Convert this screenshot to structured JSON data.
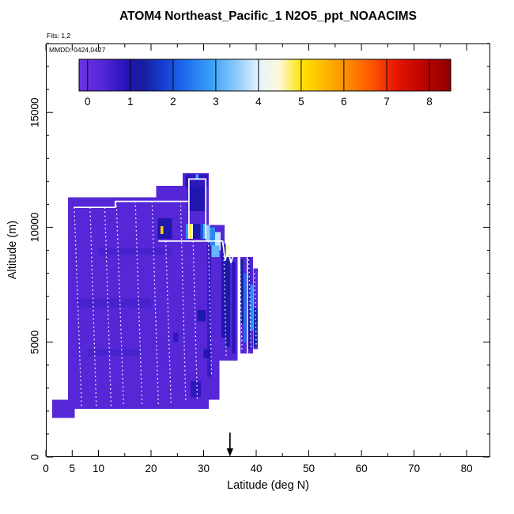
{
  "chart": {
    "title": "ATOM4 Northeast_Pacific_1 N2O5_ppt_NOAACIMS",
    "fits_label": "Fits: 1,2",
    "mmdd_label": "MMDD: 0424,0427"
  },
  "chart_data": {
    "type": "heatmap",
    "title": "ATOM4 Northeast_Pacific_1 N2O5_ppt_NOAACIMS",
    "annotations": [
      "Fits: 1,2",
      "MMDD: 0424,0427"
    ],
    "xlabel": "Latitude (deg N)",
    "ylabel": "Altitude (m)",
    "xlim": [
      0,
      84.5
    ],
    "ylim": [
      0,
      18000
    ],
    "x_ticks_labeled": [
      0,
      5,
      10,
      20,
      30,
      40,
      50,
      60,
      70,
      80
    ],
    "x_ticks_minor_step": 5,
    "y_ticks_labeled": [
      0,
      5000,
      10000,
      15000
    ],
    "y_ticks_minor_step": 1000,
    "arrow_x": 35,
    "colorbar": {
      "ticks": [
        0,
        1,
        2,
        3,
        4,
        5,
        6,
        7,
        8
      ],
      "domain": [
        -0.2,
        8.5
      ],
      "stops": [
        [
          -0.2,
          "#6C33E3"
        ],
        [
          0.35,
          "#5527D6"
        ],
        [
          0.9,
          "#2613B8"
        ],
        [
          1.3,
          "#151E9E"
        ],
        [
          1.8,
          "#173FD4"
        ],
        [
          2.3,
          "#1E6EEE"
        ],
        [
          2.9,
          "#3AA0F6"
        ],
        [
          3.5,
          "#8FCBFA"
        ],
        [
          4.0,
          "#E6F3FD"
        ],
        [
          4.5,
          "#FEF8D8"
        ],
        [
          5.0,
          "#FFE400"
        ],
        [
          5.6,
          "#FFB300"
        ],
        [
          6.1,
          "#FF8A00"
        ],
        [
          6.7,
          "#FC5100"
        ],
        [
          7.2,
          "#E81600"
        ],
        [
          7.9,
          "#BA0300"
        ],
        [
          8.5,
          "#8D0000"
        ]
      ]
    },
    "cells_format": "lat0,lat1,alt0,alt1,value_ppt",
    "cells": [
      [
        1.2,
        5.5,
        1700,
        2500,
        0.35
      ],
      [
        4.2,
        31,
        2100,
        2500,
        0.35
      ],
      [
        4.2,
        33,
        2500,
        4200,
        0.35
      ],
      [
        4.2,
        36.5,
        4200,
        8700,
        0.35
      ],
      [
        4.2,
        34,
        8700,
        10100,
        0.35
      ],
      [
        4.2,
        31,
        10100,
        11300,
        0.35
      ],
      [
        21,
        31,
        11300,
        11800,
        0.35
      ],
      [
        26,
        31,
        11800,
        12350,
        0.35
      ],
      [
        37,
        38.2,
        4500,
        8700,
        0.35
      ],
      [
        38.4,
        39.4,
        4500,
        8700,
        0.35
      ],
      [
        39.5,
        40.3,
        4700,
        8200,
        0.35
      ],
      [
        6,
        20,
        6500,
        6900,
        0.5
      ],
      [
        8,
        18,
        4400,
        4700,
        0.5
      ],
      [
        10,
        24,
        8800,
        9100,
        0.5
      ],
      [
        30.7,
        31.4,
        3500,
        9300,
        0.7
      ],
      [
        35.4,
        36.0,
        4500,
        8500,
        0.9
      ],
      [
        33.4,
        34.2,
        5200,
        9300,
        1.0
      ],
      [
        34.2,
        35.0,
        4800,
        8800,
        1.3
      ],
      [
        27.0,
        30.5,
        10700,
        11750,
        1.0
      ],
      [
        26.5,
        30.8,
        11750,
        12300,
        0.8
      ],
      [
        28.5,
        29.0,
        12100,
        12300,
        3.0
      ],
      [
        21.3,
        24.0,
        9500,
        10400,
        1.05
      ],
      [
        26.6,
        27.1,
        9500,
        10150,
        2.8
      ],
      [
        27.1,
        27.6,
        9500,
        10150,
        5.0
      ],
      [
        27.6,
        28.0,
        9500,
        10150,
        4.3
      ],
      [
        28.0,
        29.4,
        9500,
        10150,
        1.1
      ],
      [
        29.4,
        29.9,
        9500,
        10150,
        2.1
      ],
      [
        29.9,
        30.4,
        9500,
        10150,
        3.1
      ],
      [
        30.4,
        31.2,
        9400,
        10100,
        3.5
      ],
      [
        31.2,
        32.2,
        9200,
        10000,
        2.6
      ],
      [
        32.2,
        33.2,
        9000,
        9800,
        3.8
      ],
      [
        31.5,
        33.0,
        8700,
        9200,
        3.2
      ],
      [
        21.8,
        22.3,
        9700,
        10050,
        5.2
      ],
      [
        34.3,
        34.9,
        8700,
        9200,
        4.6
      ],
      [
        37.0,
        37.5,
        5800,
        8600,
        1.3
      ],
      [
        37.6,
        38.1,
        5000,
        8000,
        2.3
      ],
      [
        38.4,
        38.9,
        4700,
        8700,
        1.1
      ],
      [
        38.9,
        39.4,
        5500,
        7500,
        2.7
      ],
      [
        39.5,
        40.2,
        4800,
        6500,
        1.4
      ],
      [
        28.8,
        30.4,
        5900,
        6400,
        1.1
      ],
      [
        24.2,
        25.2,
        5000,
        5400,
        0.8
      ],
      [
        27.5,
        29.5,
        2600,
        3300,
        0.8
      ],
      [
        30.0,
        31.5,
        4300,
        4700,
        0.9
      ]
    ],
    "tracks": [
      {
        "style": "solid",
        "pts": [
          [
            5.3,
            10870
          ],
          [
            13.2,
            10870
          ],
          [
            13.2,
            11130
          ],
          [
            27.2,
            11130
          ]
        ]
      },
      {
        "style": "solid",
        "pts": [
          [
            27.2,
            9500
          ],
          [
            27.2,
            12100
          ],
          [
            30.4,
            12100
          ],
          [
            30.4,
            9500
          ]
        ]
      },
      {
        "style": "solid",
        "pts": [
          [
            21.4,
            9400
          ],
          [
            33.6,
            9400
          ],
          [
            34.1,
            8550
          ],
          [
            34.6,
            9000
          ],
          [
            35.2,
            8450
          ],
          [
            35.6,
            8800
          ]
        ]
      },
      {
        "style": "dotted",
        "pts": [
          [
            5.4,
            10870
          ],
          [
            6.8,
            2200
          ]
        ]
      },
      {
        "style": "dotted",
        "pts": [
          [
            8.4,
            10870
          ],
          [
            9.6,
            2200
          ]
        ]
      },
      {
        "style": "dotted",
        "pts": [
          [
            11.2,
            10870
          ],
          [
            12.4,
            2200
          ]
        ]
      },
      {
        "style": "dotted",
        "pts": [
          [
            13.4,
            11130
          ],
          [
            14.8,
            2200
          ]
        ]
      },
      {
        "style": "dotted",
        "pts": [
          [
            17.0,
            11130
          ],
          [
            18.3,
            2200
          ]
        ]
      },
      {
        "style": "dotted",
        "pts": [
          [
            20.2,
            11130
          ],
          [
            21.4,
            2300
          ]
        ]
      },
      {
        "style": "dotted",
        "pts": [
          [
            22.8,
            9400
          ],
          [
            23.8,
            2300
          ]
        ]
      },
      {
        "style": "dotted",
        "pts": [
          [
            25.6,
            11130
          ],
          [
            26.6,
            2400
          ]
        ]
      },
      {
        "style": "dotted",
        "pts": [
          [
            28.0,
            9400
          ],
          [
            28.8,
            2500
          ]
        ]
      },
      {
        "style": "dotted",
        "pts": [
          [
            30.9,
            9400
          ],
          [
            31.5,
            3600
          ]
        ]
      },
      {
        "style": "dotted",
        "pts": [
          [
            33.8,
            9300
          ],
          [
            34.3,
            4300
          ]
        ]
      },
      {
        "style": "dotted",
        "pts": [
          [
            36.9,
            8500
          ],
          [
            37.3,
            4600
          ]
        ]
      },
      {
        "style": "dotted",
        "pts": [
          [
            38.6,
            8600
          ],
          [
            39.0,
            4700
          ]
        ]
      },
      {
        "style": "dotted",
        "pts": [
          [
            39.7,
            8000
          ],
          [
            40.0,
            4900
          ]
        ]
      }
    ]
  }
}
